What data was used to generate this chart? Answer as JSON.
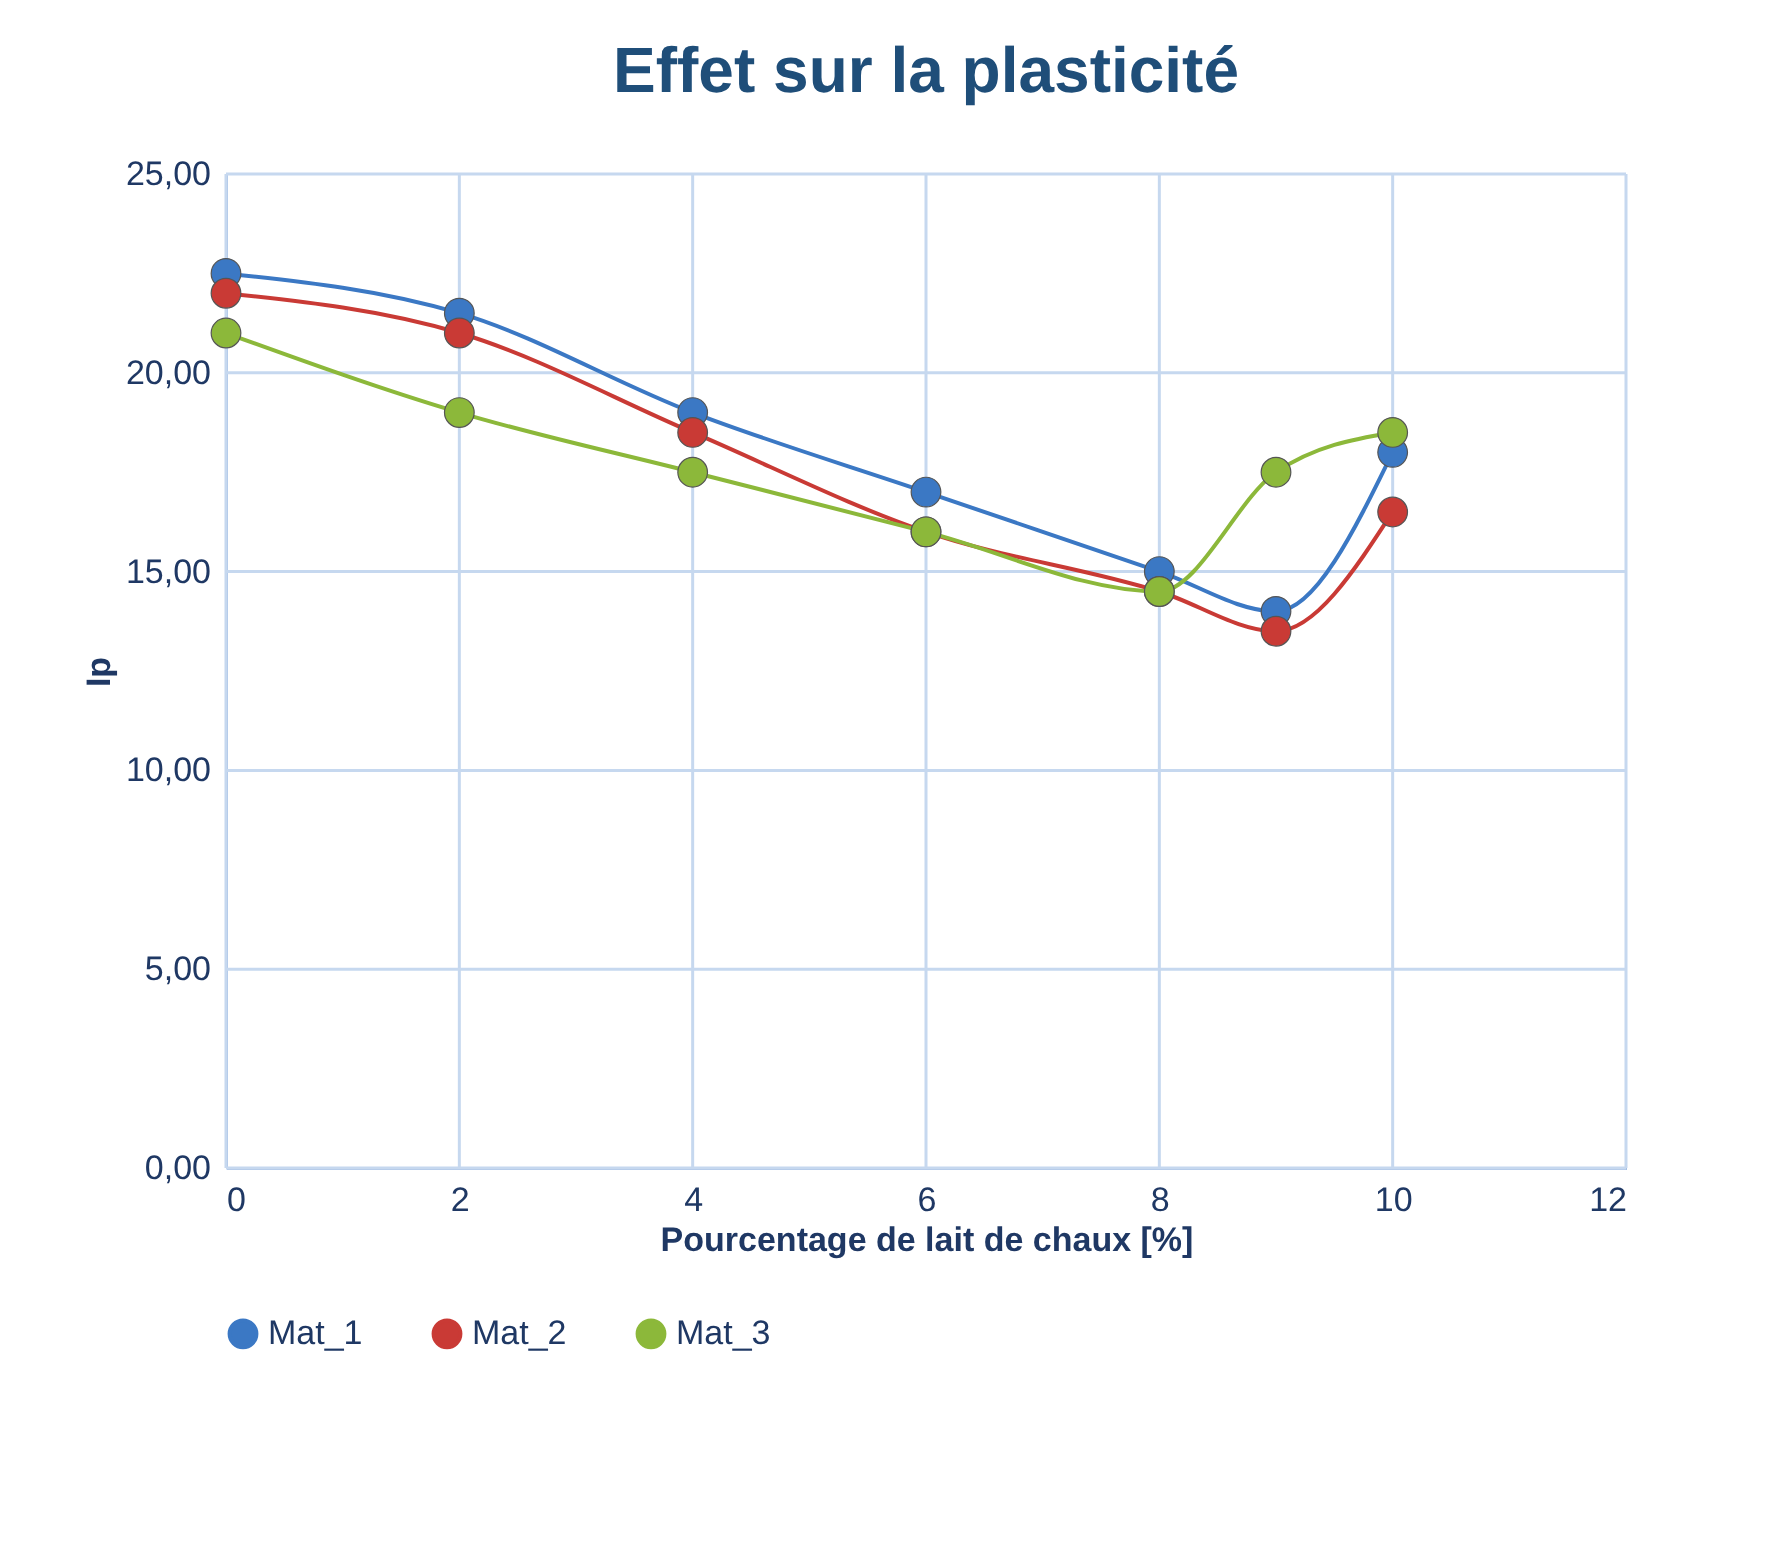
{
  "chart_data": {
    "type": "line",
    "title": "Effet sur la plasticité",
    "xlabel": "Pourcentage  de lait de chaux [%]",
    "ylabel": "Ip",
    "x": [
      0,
      2,
      4,
      6,
      8,
      9,
      10
    ],
    "series": [
      {
        "name": "Mat_1",
        "color": "#3b78c4",
        "values": [
          22.5,
          21.5,
          19,
          17,
          15,
          14,
          18
        ]
      },
      {
        "name": "Mat_2",
        "color": "#c93a35",
        "values": [
          22,
          21,
          18.5,
          16,
          14.5,
          13.5,
          16.5
        ]
      },
      {
        "name": "Mat_3",
        "color": "#8cb83a",
        "values": [
          21,
          19,
          17.5,
          16,
          14.5,
          17.5,
          18.5
        ]
      }
    ],
    "xlim": [
      0,
      12
    ],
    "xticks": [
      0,
      2,
      4,
      6,
      8,
      10,
      12
    ],
    "ylim": [
      0,
      25
    ],
    "yticks": [
      {
        "value": 0,
        "label": "0,00"
      },
      {
        "value": 5,
        "label": "5,00"
      },
      {
        "value": 10,
        "label": "10,00"
      },
      {
        "value": 15,
        "label": "15,00"
      },
      {
        "value": 20,
        "label": "20,00"
      },
      {
        "value": 25,
        "label": "25,00"
      }
    ],
    "grid": true,
    "legend": "bottom",
    "marker": "circle",
    "line_style": "solid"
  }
}
